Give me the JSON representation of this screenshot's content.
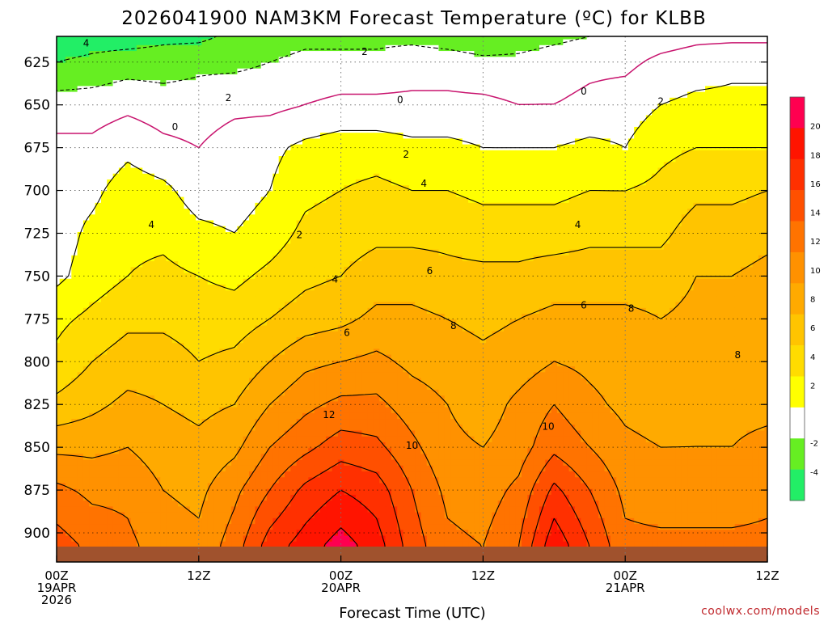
{
  "chart_data": {
    "type": "heatmap",
    "title": "2026041900 NAM3KM Forecast Temperature (ºC) for KLBB",
    "xlabel": "Forecast Time (UTC)",
    "ylabel": "",
    "credit": "coolwx.com/models",
    "x_ticks": [
      {
        "hour": 0,
        "lines": [
          "00Z",
          "19APR",
          "2026"
        ]
      },
      {
        "hour": 12,
        "lines": [
          "12Z"
        ]
      },
      {
        "hour": 24,
        "lines": [
          "00Z",
          "20APR"
        ]
      },
      {
        "hour": 36,
        "lines": [
          "12Z"
        ]
      },
      {
        "hour": 48,
        "lines": [
          "00Z",
          "21APR"
        ]
      },
      {
        "hour": 60,
        "lines": [
          "12Z"
        ]
      }
    ],
    "xlim": [
      0,
      60
    ],
    "y_ticks": [
      625,
      650,
      675,
      700,
      725,
      750,
      775,
      800,
      825,
      850,
      875,
      900
    ],
    "ylim": [
      610,
      917
    ],
    "colorbar": {
      "ticks": [
        -4,
        -2,
        2,
        4,
        6,
        8,
        10,
        12,
        14,
        16,
        18,
        20
      ],
      "bands": [
        {
          "min": -6,
          "max": -4,
          "color": "#22ee66"
        },
        {
          "min": -4,
          "max": -2,
          "color": "#66ee22"
        },
        {
          "min": -2,
          "max": 2,
          "color": "#ffffff"
        },
        {
          "min": 2,
          "max": 4,
          "color": "#ffff00"
        },
        {
          "min": 4,
          "max": 6,
          "color": "#ffdc00"
        },
        {
          "min": 6,
          "max": 8,
          "color": "#ffc400"
        },
        {
          "min": 8,
          "max": 10,
          "color": "#ffaa00"
        },
        {
          "min": 10,
          "max": 12,
          "color": "#ff9100"
        },
        {
          "min": 12,
          "max": 14,
          "color": "#ff7300"
        },
        {
          "min": 14,
          "max": 16,
          "color": "#ff5000"
        },
        {
          "min": 16,
          "max": 18,
          "color": "#ff3000"
        },
        {
          "min": 18,
          "max": 20,
          "color": "#ff1400"
        },
        {
          "min": 20,
          "max": 22,
          "color": "#ff0050"
        }
      ]
    },
    "ground": {
      "pressure": 908,
      "color": "#a0522d"
    },
    "freezing_line_color": "#c8146e",
    "stations": [
      {
        "hour": 0,
        "t": [
          -5.5,
          -4.0,
          -1.0,
          0.5,
          1.0,
          1.0,
          1.5,
          3.5,
          4.5,
          6.5,
          9.5,
          12.5,
          15.0
        ]
      },
      {
        "hour": 3,
        "t": [
          -5.0,
          -3.5,
          -1.0,
          0.5,
          1.5,
          2.5,
          3.0,
          4.5,
          6.0,
          7.5,
          9.5,
          11.5,
          13.5
        ]
      },
      {
        "hour": 6,
        "t": [
          -5.0,
          -3.0,
          -0.5,
          1.5,
          3.0,
          3.5,
          4.0,
          5.5,
          7.0,
          8.5,
          10.0,
          11.5,
          12.5
        ]
      },
      {
        "hour": 9,
        "t": [
          -4.5,
          -3.0,
          -1.0,
          0.5,
          2.5,
          3.5,
          4.5,
          5.5,
          7.0,
          8.0,
          9.0,
          10.0,
          11.0
        ]
      },
      {
        "hour": 12,
        "t": [
          -4.5,
          -2.5,
          -1.0,
          0.0,
          1.0,
          2.5,
          4.0,
          5.0,
          6.0,
          7.5,
          8.5,
          9.5,
          10.5
        ]
      },
      {
        "hour": 15,
        "t": [
          -3.5,
          -2.5,
          -0.5,
          1.0,
          1.0,
          2.0,
          3.5,
          5.0,
          6.5,
          8.0,
          9.5,
          11.5,
          13.0
        ]
      },
      {
        "hour": 18,
        "t": [
          -3.0,
          -2.0,
          -0.5,
          1.5,
          2.0,
          3.0,
          4.5,
          6.0,
          8.0,
          10.0,
          12.0,
          14.0,
          17.0
        ]
      },
      {
        "hour": 21,
        "t": [
          -2.5,
          -1.5,
          0.0,
          2.5,
          3.5,
          4.5,
          5.5,
          7.0,
          9.5,
          11.5,
          13.5,
          16.5,
          19.0
        ]
      },
      {
        "hour": 24,
        "t": [
          -2.5,
          -1.5,
          0.5,
          3.0,
          4.0,
          5.0,
          6.0,
          7.5,
          10.0,
          12.5,
          15.0,
          18.0,
          21.0
        ]
      },
      {
        "hour": 27,
        "t": [
          -2.5,
          -1.5,
          0.5,
          3.0,
          4.5,
          5.5,
          7.0,
          8.5,
          10.5,
          12.5,
          14.5,
          17.0,
          19.0
        ]
      },
      {
        "hour": 30,
        "t": [
          -2.5,
          -1.0,
          0.5,
          2.5,
          4.0,
          5.5,
          7.0,
          8.5,
          9.5,
          11.0,
          12.5,
          14.0,
          15.0
        ]
      },
      {
        "hour": 33,
        "t": [
          -3.0,
          -1.0,
          0.5,
          2.5,
          4.0,
          5.5,
          6.5,
          8.0,
          9.0,
          10.0,
          10.5,
          11.5,
          12.5
        ]
      },
      {
        "hour": 36,
        "t": [
          -3.5,
          -1.5,
          0.5,
          2.0,
          3.5,
          5.0,
          6.5,
          7.5,
          8.5,
          9.0,
          10.0,
          11.0,
          12.0
        ]
      },
      {
        "hour": 39,
        "t": [
          -3.0,
          -1.5,
          0.0,
          2.0,
          3.5,
          5.0,
          6.5,
          8.0,
          9.0,
          10.5,
          11.0,
          12.5,
          14.0
        ]
      },
      {
        "hour": 42,
        "t": [
          -2.5,
          -1.0,
          0.0,
          2.0,
          3.5,
          5.0,
          7.0,
          8.5,
          10.0,
          12.0,
          13.5,
          16.5,
          19.5
        ]
      },
      {
        "hour": 45,
        "t": [
          -2.0,
          -0.5,
          0.5,
          2.5,
          4.0,
          5.5,
          7.0,
          8.5,
          9.5,
          10.5,
          12.0,
          14.0,
          16.0
        ]
      },
      {
        "hour": 48,
        "t": [
          -1.5,
          -0.5,
          1.0,
          2.0,
          4.0,
          5.5,
          7.0,
          8.5,
          9.0,
          9.5,
          10.5,
          11.5,
          12.5
        ]
      },
      {
        "hour": 51,
        "t": [
          -1.0,
          0.5,
          2.0,
          3.5,
          4.5,
          5.5,
          7.0,
          8.0,
          9.0,
          9.0,
          10.0,
          11.0,
          12.5
        ]
      },
      {
        "hour": 54,
        "t": [
          -0.5,
          1.0,
          2.5,
          4.0,
          5.5,
          7.0,
          8.0,
          8.5,
          8.5,
          9.5,
          10.0,
          11.0,
          12.5
        ]
      },
      {
        "hour": 57,
        "t": [
          -0.5,
          1.5,
          2.5,
          4.0,
          5.5,
          7.0,
          8.0,
          8.5,
          8.5,
          9.5,
          10.0,
          11.0,
          12.5
        ]
      },
      {
        "hour": 60,
        "t": [
          -0.5,
          1.5,
          2.5,
          4.0,
          6.0,
          7.5,
          8.5,
          8.5,
          8.5,
          9.5,
          10.5,
          11.5,
          12.5
        ]
      }
    ],
    "station_levels": [
      610,
      625,
      650,
      675,
      700,
      725,
      750,
      775,
      800,
      825,
      850,
      875,
      908
    ],
    "contour_labels": [
      {
        "hour": 2.5,
        "p": 614,
        "text": "4"
      },
      {
        "hour": 14.5,
        "p": 646,
        "text": "2"
      },
      {
        "hour": 26,
        "p": 619,
        "text": "2"
      },
      {
        "hour": 10,
        "p": 663,
        "text": "0"
      },
      {
        "hour": 29,
        "p": 647,
        "text": "0"
      },
      {
        "hour": 44.5,
        "p": 642,
        "text": "0"
      },
      {
        "hour": 51,
        "p": 648,
        "text": "2"
      },
      {
        "hour": 29.5,
        "p": 679,
        "text": "2"
      },
      {
        "hour": 20.5,
        "p": 726,
        "text": "2"
      },
      {
        "hour": 8,
        "p": 720,
        "text": "4"
      },
      {
        "hour": 31,
        "p": 696,
        "text": "4"
      },
      {
        "hour": 44,
        "p": 720,
        "text": "4"
      },
      {
        "hour": 23.5,
        "p": 752,
        "text": "4"
      },
      {
        "hour": 31.5,
        "p": 747,
        "text": "6"
      },
      {
        "hour": 44.5,
        "p": 767,
        "text": "6"
      },
      {
        "hour": 24.5,
        "p": 783,
        "text": "6"
      },
      {
        "hour": 33.5,
        "p": 779,
        "text": "8"
      },
      {
        "hour": 48.5,
        "p": 769,
        "text": "8"
      },
      {
        "hour": 57.5,
        "p": 796,
        "text": "8"
      },
      {
        "hour": 23,
        "p": 831,
        "text": "12"
      },
      {
        "hour": 41.5,
        "p": 838,
        "text": "10"
      },
      {
        "hour": 30,
        "p": 849,
        "text": "10"
      }
    ]
  }
}
